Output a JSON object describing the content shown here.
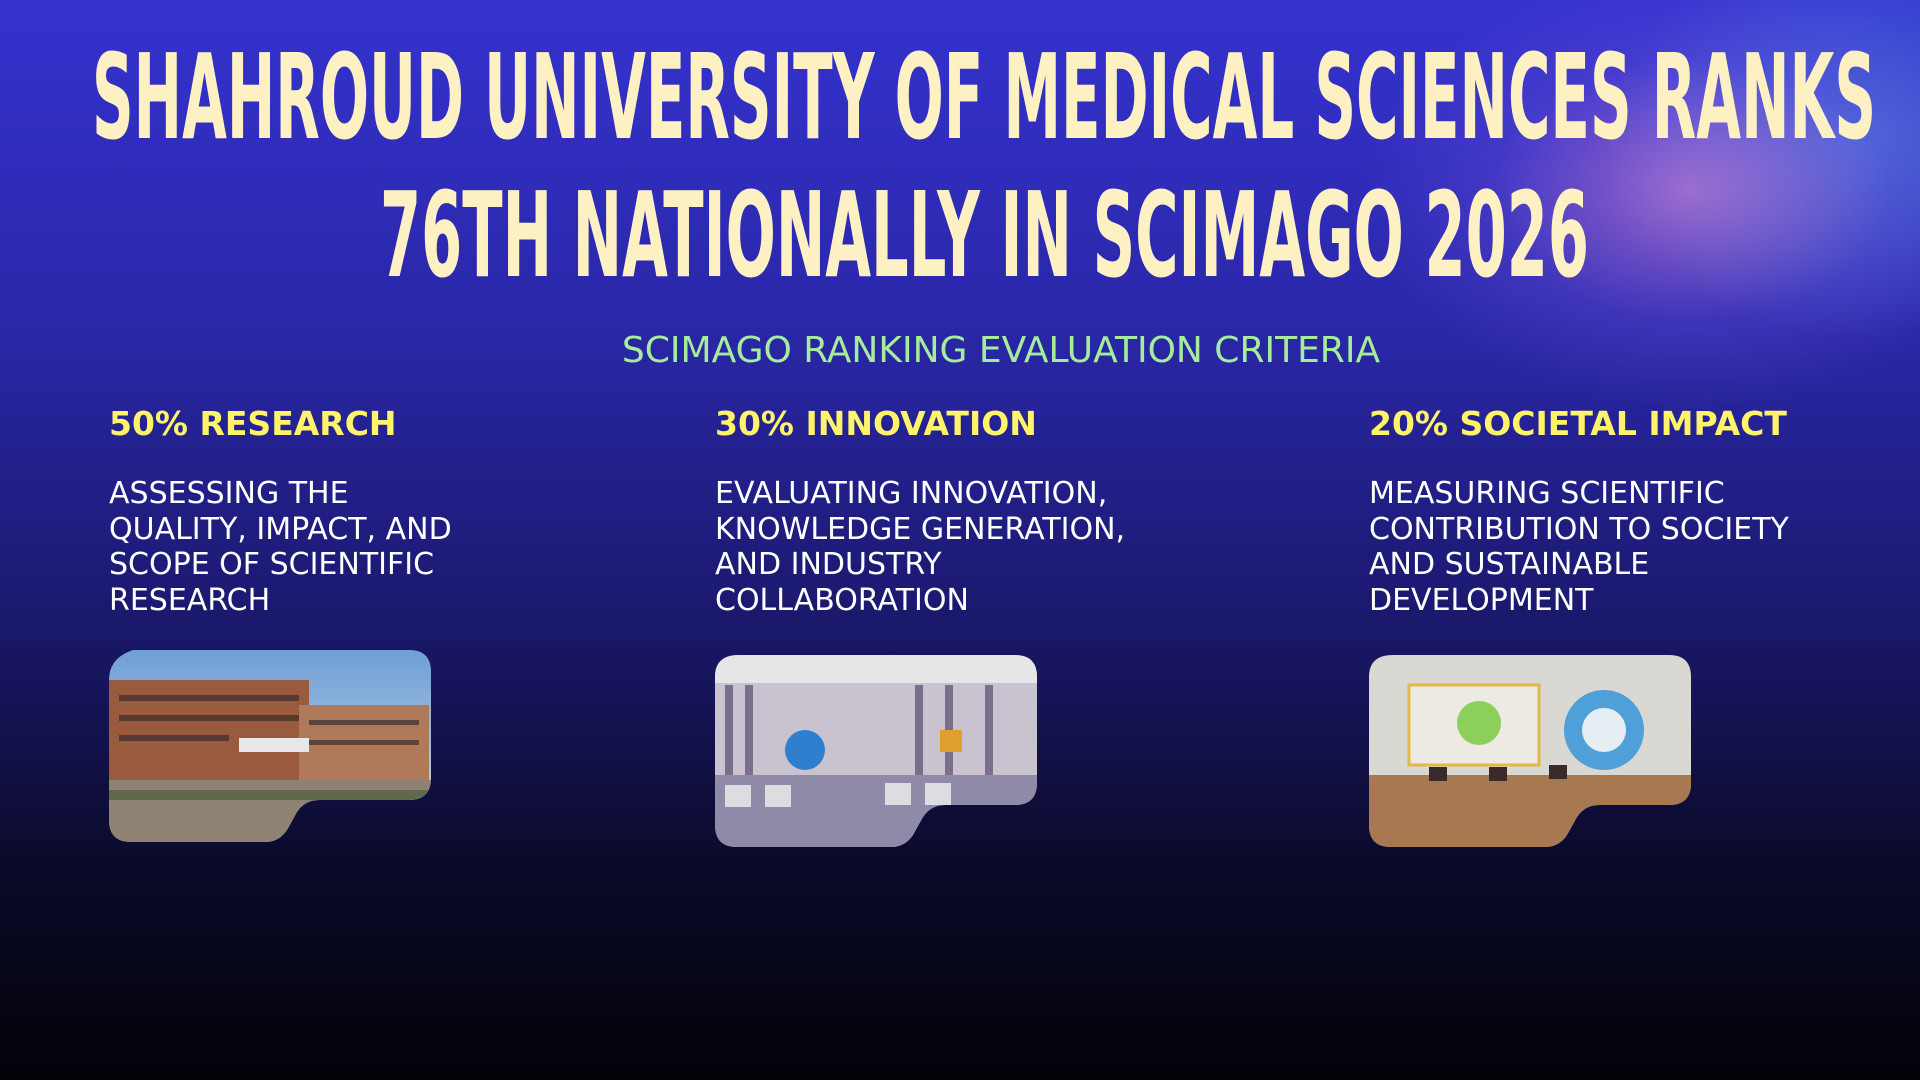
{
  "header": {
    "title_lines": [
      "SHAHROUD UNIVERSITY OF MEDICAL SCIENCES RANKS",
      "76TH NATIONALLY IN SCIMAGO 2026"
    ],
    "subtitle": "SCIMAGO RANKING EVALUATION CRITERIA"
  },
  "criteria": [
    {
      "heading": "50% RESEARCH",
      "description": [
        "ASSESSING THE",
        "QUALITY, IMPACT, AND",
        "SCOPE OF SCIENTIFIC",
        "RESEARCH"
      ]
    },
    {
      "heading": "30% INNOVATION",
      "description": [
        "EVALUATING INNOVATION,",
        "KNOWLEDGE GENERATION,",
        "AND INDUSTRY",
        "COLLABORATION"
      ]
    },
    {
      "heading": "20% SOCIETAL IMPACT",
      "description": [
        "MEASURING SCIENTIFIC",
        "CONTRIBUTION TO SOCIETY",
        "AND SUSTAINABLE",
        "DEVELOPMENT"
      ]
    }
  ]
}
